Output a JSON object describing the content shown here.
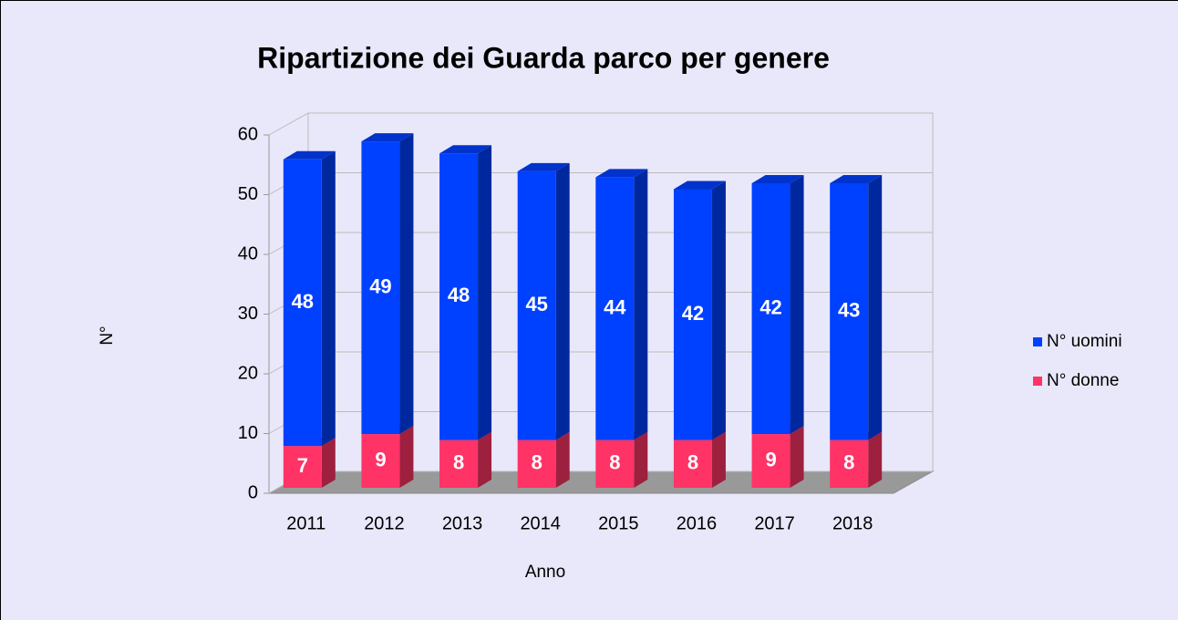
{
  "chart_data": {
    "type": "bar",
    "stacked": true,
    "title": "Ripartizione  dei Guarda parco per genere",
    "x_label": "Anno",
    "y_label": "N°",
    "categories": [
      "2011",
      "2012",
      "2013",
      "2014",
      "2015",
      "2016",
      "2017",
      "2018"
    ],
    "series": [
      {
        "name": "N° donne",
        "color": "#ff3366",
        "values": [
          7,
          9,
          8,
          8,
          8,
          8,
          9,
          8
        ]
      },
      {
        "name": "N° uomini",
        "color": "#0040ff",
        "values": [
          48,
          49,
          48,
          45,
          44,
          42,
          42,
          43
        ]
      }
    ],
    "ylim": [
      0,
      60
    ],
    "yticks": [
      0,
      10,
      20,
      30,
      40,
      50,
      60
    ],
    "grid": true,
    "legend": "right"
  }
}
